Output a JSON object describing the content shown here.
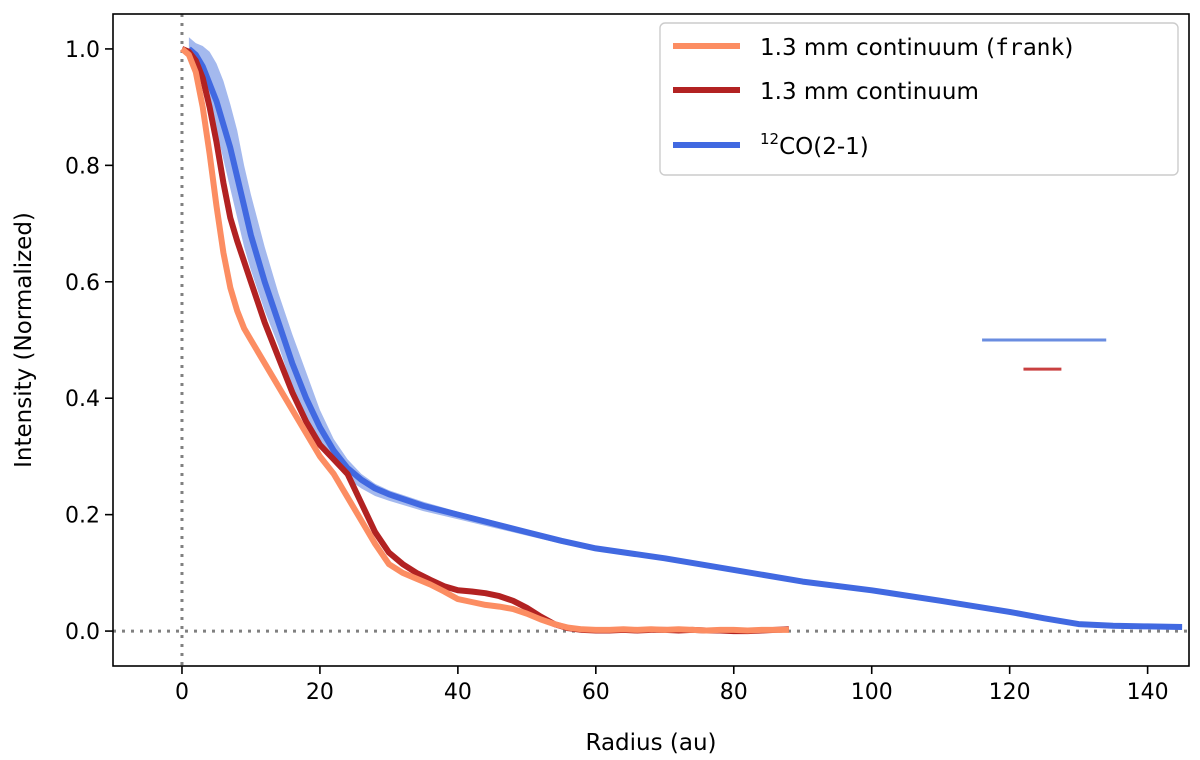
{
  "chart_data": {
    "type": "line",
    "xlabel": "Radius (au)",
    "ylabel": "Intensity (Normalized)",
    "xlim": [
      -10,
      146
    ],
    "ylim": [
      -0.06,
      1.06
    ],
    "xticks": [
      0,
      20,
      40,
      60,
      80,
      100,
      120,
      140
    ],
    "yticks": [
      0.0,
      0.2,
      0.4,
      0.6,
      0.8,
      1.0
    ],
    "xtick_labels": [
      "0",
      "20",
      "40",
      "60",
      "80",
      "100",
      "120",
      "140"
    ],
    "ytick_labels": [
      "0.0",
      "0.2",
      "0.4",
      "0.6",
      "0.8",
      "1.0"
    ],
    "grid": false,
    "legend_position": "top-right",
    "reference_lines": [
      {
        "orientation": "vertical",
        "value": 0,
        "style": "dotted",
        "color": "#808080"
      },
      {
        "orientation": "horizontal",
        "value": 0,
        "style": "dotted",
        "color": "#808080"
      }
    ],
    "beam_bars": [
      {
        "color": "#6a8de0",
        "x": [
          116,
          134
        ],
        "y": 0.5
      },
      {
        "color": "#c94040",
        "x": [
          122,
          127.5
        ],
        "y": 0.45
      }
    ],
    "series": [
      {
        "name": "1.3 mm continuum (frank)",
        "legend_parts": {
          "pre": "1.3 mm continuum (",
          "code": "frank",
          "post": ")"
        },
        "color": "#fc8d62",
        "x": [
          0,
          1,
          2,
          3,
          4,
          5,
          6,
          7,
          8,
          9,
          10,
          12,
          14,
          16,
          18,
          20,
          22,
          24,
          26,
          28,
          30,
          32,
          34,
          36,
          38,
          40,
          42,
          44,
          46,
          48,
          50,
          52,
          54,
          56,
          58,
          60,
          62,
          64,
          66,
          68,
          70,
          72,
          74,
          76,
          78,
          80,
          82,
          84,
          86,
          88
        ],
        "y": [
          1.0,
          0.99,
          0.96,
          0.9,
          0.82,
          0.73,
          0.65,
          0.59,
          0.55,
          0.52,
          0.5,
          0.46,
          0.42,
          0.38,
          0.34,
          0.3,
          0.27,
          0.23,
          0.19,
          0.15,
          0.115,
          0.1,
          0.09,
          0.08,
          0.068,
          0.055,
          0.05,
          0.045,
          0.042,
          0.038,
          0.03,
          0.02,
          0.012,
          0.006,
          0.003,
          0.002,
          0.002,
          0.003,
          0.002,
          0.003,
          0.002,
          0.003,
          0.002,
          0.001,
          0.002,
          0.002,
          0.001,
          0.002,
          0.002,
          0.002
        ]
      },
      {
        "name": "1.3 mm continuum",
        "color": "#b22222",
        "x": [
          0,
          1,
          2,
          3,
          4,
          5,
          6,
          7,
          8,
          10,
          12,
          14,
          16,
          18,
          20,
          22,
          24,
          26,
          28,
          30,
          32,
          34,
          36,
          38,
          40,
          42,
          44,
          46,
          48,
          50,
          52,
          54,
          56,
          58,
          60,
          62,
          64,
          66,
          68,
          70,
          72,
          74,
          76,
          78,
          80,
          82,
          84,
          86,
          88
        ],
        "y": [
          1.0,
          0.995,
          0.98,
          0.95,
          0.9,
          0.84,
          0.77,
          0.71,
          0.67,
          0.6,
          0.53,
          0.47,
          0.41,
          0.36,
          0.32,
          0.295,
          0.27,
          0.22,
          0.17,
          0.135,
          0.115,
          0.1,
          0.088,
          0.077,
          0.07,
          0.068,
          0.065,
          0.06,
          0.052,
          0.04,
          0.025,
          0.012,
          0.005,
          0.002,
          0.001,
          0.001,
          0.002,
          0.001,
          0.002,
          0.002,
          0.001,
          0.002,
          0.001,
          0.001,
          0.0,
          0.0,
          0.001,
          0.002,
          0.003
        ]
      },
      {
        "name": "12CO(2-1)",
        "legend_parts": {
          "sup": "12",
          "main": "CO(2-1)"
        },
        "color": "#4169e1",
        "band_color": "#a4b9ee",
        "x": [
          1,
          2,
          3,
          4,
          5,
          6,
          7,
          8,
          9,
          10,
          12,
          14,
          16,
          18,
          20,
          22,
          24,
          26,
          28,
          30,
          35,
          40,
          45,
          50,
          55,
          60,
          70,
          80,
          90,
          100,
          110,
          120,
          125,
          130,
          135,
          140,
          145
        ],
        "y": [
          1.0,
          0.99,
          0.97,
          0.94,
          0.91,
          0.87,
          0.83,
          0.78,
          0.73,
          0.68,
          0.6,
          0.53,
          0.46,
          0.4,
          0.35,
          0.31,
          0.28,
          0.26,
          0.245,
          0.235,
          0.215,
          0.2,
          0.185,
          0.17,
          0.155,
          0.142,
          0.125,
          0.105,
          0.085,
          0.07,
          0.052,
          0.033,
          0.022,
          0.012,
          0.009,
          0.008,
          0.007
        ],
        "band_upper": [
          1.02,
          1.01,
          1.005,
          0.995,
          0.975,
          0.945,
          0.905,
          0.86,
          0.8,
          0.75,
          0.66,
          0.58,
          0.51,
          0.445,
          0.38,
          0.33,
          0.295,
          0.27,
          0.253,
          0.242,
          0.222,
          0.205,
          0.19,
          0.174,
          0.158,
          0.145,
          0.128,
          0.107,
          0.087,
          0.072,
          0.054,
          0.035,
          0.024,
          0.014,
          0.011,
          0.01,
          0.009
        ],
        "band_lower": [
          0.98,
          0.975,
          0.95,
          0.91,
          0.86,
          0.81,
          0.76,
          0.71,
          0.66,
          0.62,
          0.55,
          0.49,
          0.42,
          0.37,
          0.325,
          0.29,
          0.262,
          0.245,
          0.232,
          0.224,
          0.206,
          0.192,
          0.178,
          0.164,
          0.15,
          0.138,
          0.121,
          0.101,
          0.082,
          0.067,
          0.049,
          0.03,
          0.019,
          0.009,
          0.007,
          0.006,
          0.005
        ]
      }
    ]
  }
}
